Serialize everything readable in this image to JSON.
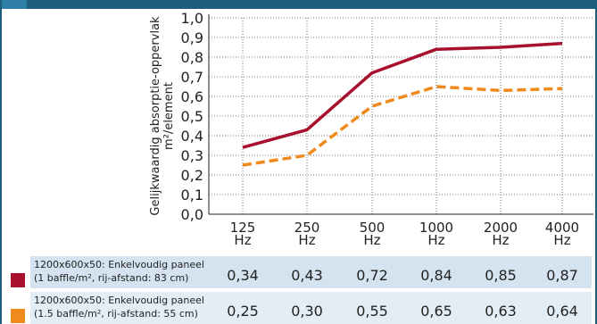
{
  "chart_data": {
    "type": "line",
    "ylabel_lines": [
      "Gelijkwaardig absorptie-oppervlak",
      "m²/element"
    ],
    "categories": [
      "125",
      "250",
      "500",
      "1000",
      "2000",
      "4000"
    ],
    "x_unit": "Hz",
    "y_ticks": [
      "0,0",
      "0,1",
      "0,2",
      "0,3",
      "0,4",
      "0,5",
      "0,6",
      "0,7",
      "0,8",
      "0,9",
      "1,0"
    ],
    "ylim": [
      0,
      1.0
    ],
    "grid": "dotted vertical and horizontal",
    "series": [
      {
        "name_lines": [
          "1200x600x50: Enkelvoudig paneel",
          "(1 baffle/m², rij-afstand: 83 cm)"
        ],
        "values": [
          0.34,
          0.43,
          0.72,
          0.84,
          0.85,
          0.87
        ],
        "value_labels": [
          "0,34",
          "0,43",
          "0,72",
          "0,84",
          "0,85",
          "0,87"
        ],
        "color": "#a8102e",
        "dash": "solid"
      },
      {
        "name_lines": [
          "1200x600x50: Enkelvoudig paneel",
          "(1.5 baffle/m², rij-afstand: 55 cm)"
        ],
        "values": [
          0.25,
          0.3,
          0.55,
          0.65,
          0.63,
          0.64
        ],
        "value_labels": [
          "0,25",
          "0,30",
          "0,55",
          "0,65",
          "0,63",
          "0,64"
        ],
        "color": "#f08a1c",
        "dash": "dashed"
      }
    ]
  },
  "colors": {
    "frame": "#1d5e7e",
    "row_background_1": "#d4e3ef",
    "row_background_2": "#e3edf5"
  }
}
